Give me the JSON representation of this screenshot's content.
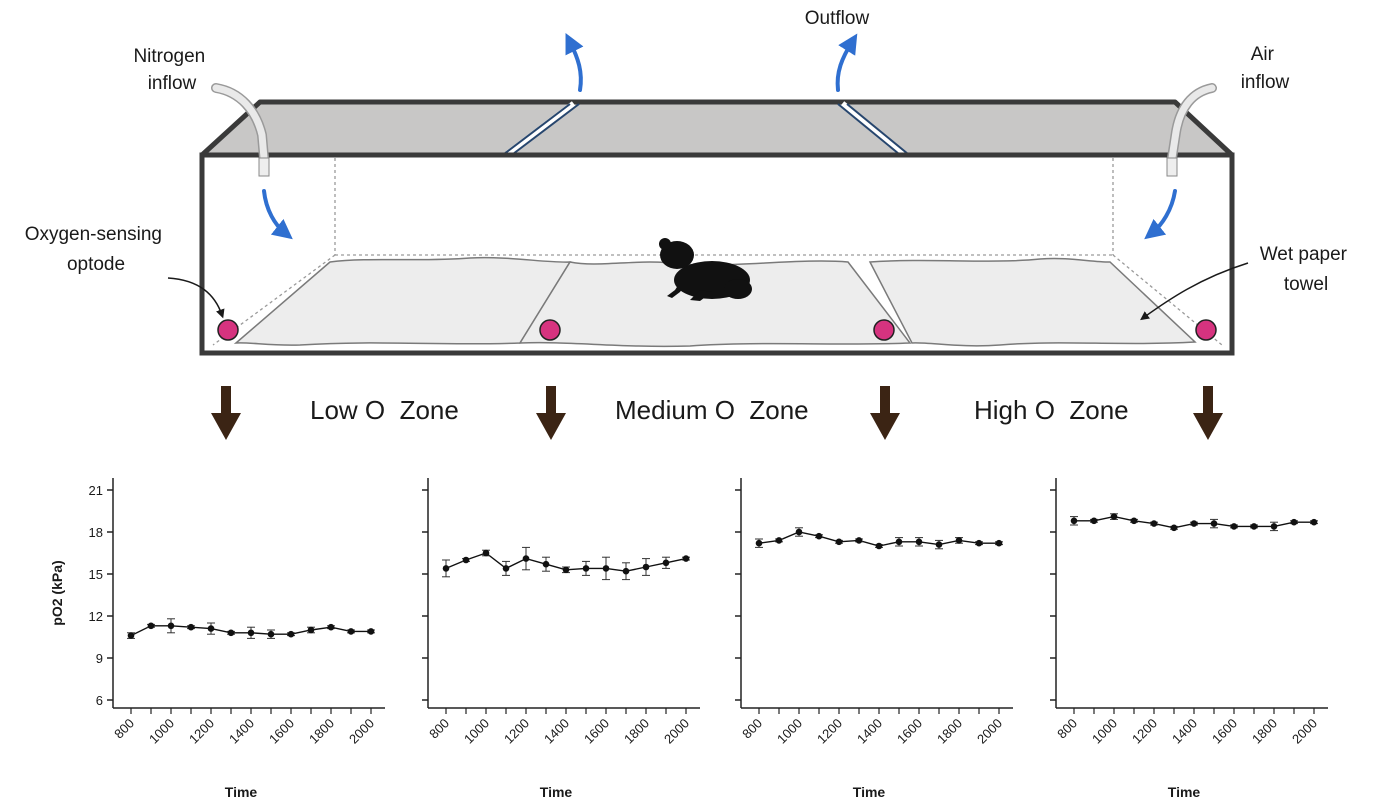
{
  "labels": {
    "nitrogen_line1": "Nitrogen",
    "nitrogen_line2": "inflow",
    "outflow": "Outflow",
    "air_line1": "Air",
    "air_line2": "inflow",
    "optode_line1": "Oxygen-sensing",
    "optode_line2": "optode",
    "towel_line1": "Wet paper",
    "towel_line2": "towel"
  },
  "zones": {
    "low": "Low O  Zone",
    "medium": "Medium O  Zone",
    "high": "High O  Zone"
  },
  "colors": {
    "optode": "#d6337f",
    "flow_arrow": "#2f6fd0",
    "down_arrow": "#3b2414",
    "lid": "#c8c7c6",
    "frame": "#3a3a3a"
  },
  "chart_data": [
    {
      "type": "line",
      "xlabel": "Time",
      "ylabel": "pO2 (kPa)",
      "ylim": [
        6,
        21
      ],
      "yticks": [
        6,
        9,
        12,
        15,
        18,
        21
      ],
      "xticks": [
        800,
        1000,
        1200,
        1400,
        1600,
        1800,
        2000
      ],
      "x": [
        800,
        900,
        1000,
        1100,
        1200,
        1300,
        1400,
        1500,
        1600,
        1700,
        1800,
        1900,
        2000
      ],
      "values": [
        10.6,
        11.3,
        11.3,
        11.2,
        11.1,
        10.8,
        10.8,
        10.7,
        10.7,
        11.0,
        11.2,
        10.9,
        10.9
      ],
      "errors": [
        0.2,
        0.1,
        0.5,
        0.1,
        0.4,
        0.1,
        0.4,
        0.3,
        0.1,
        0.2,
        0.1,
        0.1,
        0.1
      ]
    },
    {
      "type": "line",
      "xlabel": "Time",
      "ylabel": "",
      "ylim": [
        6,
        21
      ],
      "yticks": [
        6,
        9,
        12,
        15,
        18,
        21
      ],
      "xticks": [
        800,
        1000,
        1200,
        1400,
        1600,
        1800,
        2000
      ],
      "x": [
        800,
        900,
        1000,
        1100,
        1200,
        1300,
        1400,
        1500,
        1600,
        1700,
        1800,
        1900,
        2000
      ],
      "values": [
        15.4,
        16.0,
        16.5,
        15.4,
        16.1,
        15.7,
        15.3,
        15.4,
        15.4,
        15.2,
        15.5,
        15.8,
        16.1
      ],
      "errors": [
        0.6,
        0.1,
        0.2,
        0.5,
        0.8,
        0.5,
        0.2,
        0.5,
        0.8,
        0.6,
        0.6,
        0.4,
        0.1
      ]
    },
    {
      "type": "line",
      "xlabel": "Time",
      "ylabel": "",
      "ylim": [
        6,
        21
      ],
      "yticks": [
        6,
        9,
        12,
        15,
        18,
        21
      ],
      "xticks": [
        800,
        1000,
        1200,
        1400,
        1600,
        1800,
        2000
      ],
      "x": [
        800,
        900,
        1000,
        1100,
        1200,
        1300,
        1400,
        1500,
        1600,
        1700,
        1800,
        1900,
        2000
      ],
      "values": [
        17.2,
        17.4,
        18.0,
        17.7,
        17.3,
        17.4,
        17.0,
        17.3,
        17.3,
        17.1,
        17.4,
        17.2,
        17.2
      ],
      "errors": [
        0.3,
        0.1,
        0.3,
        0.1,
        0.1,
        0.1,
        0.1,
        0.3,
        0.3,
        0.3,
        0.2,
        0.1,
        0.1
      ]
    },
    {
      "type": "line",
      "xlabel": "Time",
      "ylabel": "",
      "ylim": [
        6,
        21
      ],
      "yticks": [
        6,
        9,
        12,
        15,
        18,
        21
      ],
      "xticks": [
        800,
        1000,
        1200,
        1400,
        1600,
        1800,
        2000
      ],
      "x": [
        800,
        900,
        1000,
        1100,
        1200,
        1300,
        1400,
        1500,
        1600,
        1700,
        1800,
        1900,
        2000
      ],
      "values": [
        18.8,
        18.8,
        19.1,
        18.8,
        18.6,
        18.3,
        18.6,
        18.6,
        18.4,
        18.4,
        18.4,
        18.7,
        18.7
      ],
      "errors": [
        0.3,
        0.1,
        0.2,
        0.1,
        0.1,
        0.1,
        0.1,
        0.3,
        0.1,
        0.1,
        0.3,
        0.1,
        0.1
      ]
    }
  ]
}
